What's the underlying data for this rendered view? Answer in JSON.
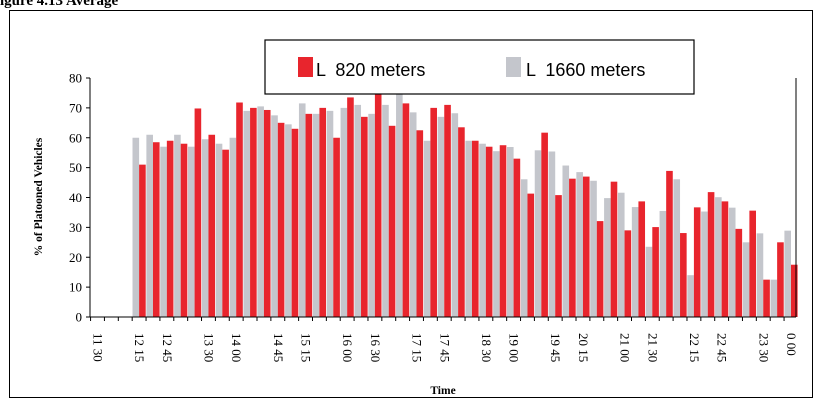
{
  "figure_heading": "igure 4.13 Average",
  "chart_data": {
    "type": "bar",
    "title": "",
    "xlabel": "Time",
    "ylabel": "% of Platooned Vehicles",
    "ylim": [
      0,
      80
    ],
    "yticks": [
      0,
      10,
      20,
      30,
      40,
      50,
      60,
      70,
      80
    ],
    "grid": false,
    "legend_position": "top-center",
    "colors": {
      "L 820 meters": "#e8252d",
      "L 1660 meters": "#c4c6cc"
    },
    "categories": [
      "11:30",
      "11:45",
      "12:00",
      "12:15",
      "12:30",
      "12:45",
      "13:00",
      "13:15",
      "13:30",
      "13:45",
      "14:00",
      "14:15",
      "14:30",
      "14:45",
      "15:00",
      "15:15",
      "15:30",
      "15:45",
      "16:00",
      "16:15",
      "16:30",
      "16:45",
      "17:00",
      "17:15",
      "17:30",
      "17:45",
      "18:00",
      "18:15",
      "18:30",
      "18:45",
      "19:00",
      "19:15",
      "19:30",
      "19:45",
      "20:00",
      "20:15",
      "20:30",
      "20:45",
      "21:00",
      "21:15",
      "21:30",
      "21:45",
      "22:00",
      "22:15",
      "22:30",
      "22:45",
      "23:00",
      "23:15",
      "23:30",
      "23:45",
      "0:00"
    ],
    "x_tick_labels": [
      "11 30",
      "12 15",
      "12 45",
      "13 30",
      "14 00",
      "14 45",
      "15 15",
      "16 00",
      "16 30",
      "17 15",
      "17 45",
      "18 30",
      "19 00",
      "19 45",
      "20 15",
      "21 00",
      "21 30",
      "22 15",
      "22 45",
      "23 30",
      "0 00"
    ],
    "x_tick_label_indices": [
      0,
      3,
      5,
      8,
      10,
      13,
      15,
      18,
      20,
      23,
      25,
      28,
      30,
      33,
      35,
      38,
      40,
      43,
      45,
      48,
      50
    ],
    "series": [
      {
        "name": "L  820 meters",
        "values": [
          0,
          0,
          0,
          51,
          58.5,
          59,
          58,
          69.8,
          61,
          56,
          71.8,
          70,
          69.3,
          65,
          63,
          68,
          70,
          60,
          73.5,
          67,
          79.8,
          64,
          71.5,
          62.5,
          70,
          71,
          63.5,
          59,
          57,
          57.5,
          53,
          41.3,
          61.7,
          40.8,
          46.3,
          47,
          32.1,
          45.3,
          29,
          38.7,
          30.1,
          48.9,
          28.1,
          36.7,
          41.8,
          38.7,
          29.5,
          35.6,
          12.5,
          25,
          17.5
        ]
      },
      {
        "name": "L  1660 meters",
        "values": [
          0,
          0,
          0,
          60,
          61,
          57,
          61,
          57,
          59.5,
          58,
          60,
          69,
          70.5,
          67.5,
          64.5,
          71.5,
          68,
          69,
          70,
          71,
          68,
          71,
          78,
          68.5,
          59,
          67,
          68.2,
          59,
          58,
          55.5,
          56.9,
          46.1,
          55.8,
          55.4,
          50.7,
          48.5,
          45.6,
          39.8,
          41.6,
          36.8,
          23.5,
          35.5,
          46.1,
          14,
          35.3,
          40.1,
          36.6,
          25,
          28,
          12.5,
          28.9
        ]
      }
    ]
  },
  "legend": {
    "items": [
      "L  820 meters",
      "L  1660 meters"
    ]
  }
}
